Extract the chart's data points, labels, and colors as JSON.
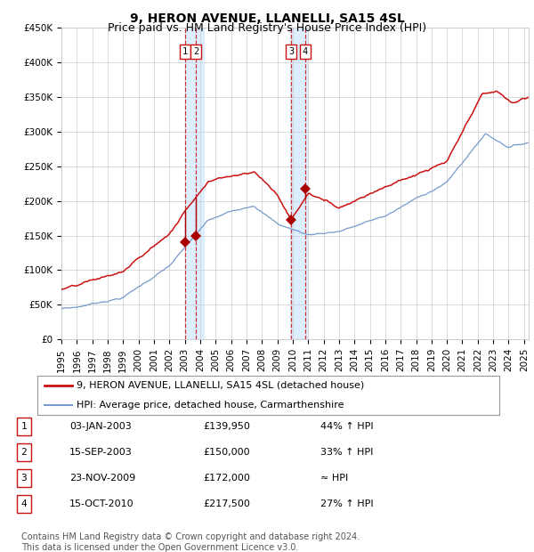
{
  "title": "9, HERON AVENUE, LLANELLI, SA15 4SL",
  "subtitle": "Price paid vs. HM Land Registry's House Price Index (HPI)",
  "ylim": [
    0,
    450000
  ],
  "yticks": [
    0,
    50000,
    100000,
    150000,
    200000,
    250000,
    300000,
    350000,
    400000,
    450000
  ],
  "ytick_labels": [
    "£0",
    "£50K",
    "£100K",
    "£150K",
    "£200K",
    "£250K",
    "£300K",
    "£350K",
    "£400K",
    "£450K"
  ],
  "hpi_color": "#7799cc",
  "price_color": "#cc1111",
  "marker_color": "#aa0000",
  "vline_color": "#cc1111",
  "vband_color": "#ddeeff",
  "background_color": "#ffffff",
  "grid_color": "#cccccc",
  "sale_dates_num": [
    2003.01,
    2003.71,
    2009.89,
    2010.79
  ],
  "sale_prices": [
    139950,
    150000,
    172000,
    217500
  ],
  "sale_labels": [
    "1",
    "2",
    "3",
    "4"
  ],
  "legend_label_price": "9, HERON AVENUE, LLANELLI, SA15 4SL (detached house)",
  "legend_label_hpi": "HPI: Average price, detached house, Carmarthenshire",
  "table_rows": [
    [
      "1",
      "03-JAN-2003",
      "£139,950",
      "44% ↑ HPI"
    ],
    [
      "2",
      "15-SEP-2003",
      "£150,000",
      "33% ↑ HPI"
    ],
    [
      "3",
      "23-NOV-2009",
      "£172,000",
      "≈ HPI"
    ],
    [
      "4",
      "15-OCT-2010",
      "£217,500",
      "27% ↑ HPI"
    ]
  ],
  "footnote": "Contains HM Land Registry data © Crown copyright and database right 2024.\nThis data is licensed under the Open Government Licence v3.0.",
  "title_fontsize": 10,
  "subtitle_fontsize": 9,
  "tick_fontsize": 7.5,
  "legend_fontsize": 8,
  "table_fontsize": 8,
  "footnote_fontsize": 7
}
